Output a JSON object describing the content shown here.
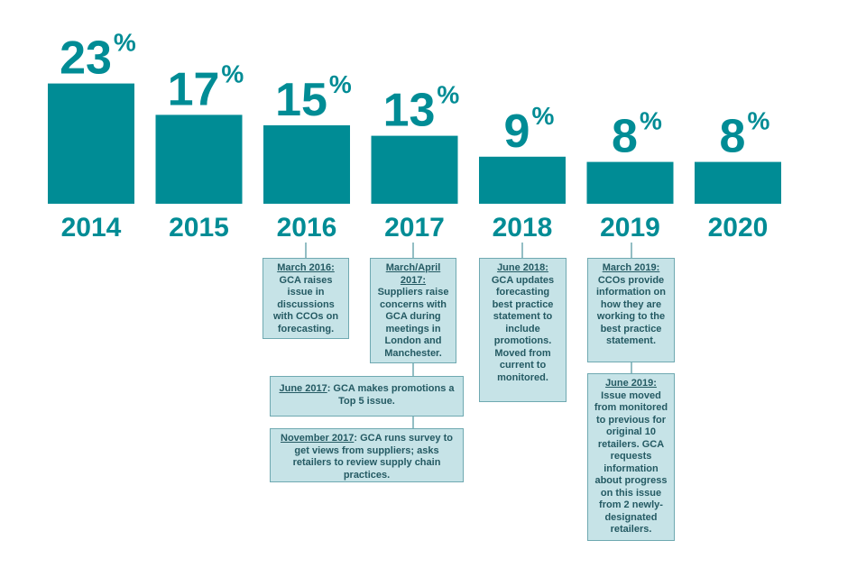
{
  "colors": {
    "bar": "#008c95",
    "text": "#008c95",
    "box_fill": "#c6e3e7",
    "box_border": "#6fa9b1",
    "box_text": "#245a63",
    "connector": "#6fa9b1"
  },
  "chart_data": {
    "type": "bar",
    "categories": [
      "2014",
      "2015",
      "2016",
      "2017",
      "2018",
      "2019",
      "2020"
    ],
    "values": [
      23,
      17,
      15,
      13,
      9,
      8,
      8
    ],
    "data_labels": [
      "23",
      "17",
      "15",
      "13",
      "9",
      "8",
      "8"
    ],
    "value_suffix": "%",
    "title": "",
    "xlabel": "",
    "ylabel": "",
    "grid": false,
    "legend": "none"
  },
  "notes": [
    {
      "id": "n2016",
      "date": "March 2016:",
      "text": "GCA raises issue in discussions with CCOs on forecasting."
    },
    {
      "id": "n2017",
      "date": "March/April 2017:",
      "text": "Suppliers raise concerns with GCA during meetings in London and Manchester."
    },
    {
      "id": "n2017b",
      "date": "June 2017",
      "text": ": GCA makes promotions a Top 5 issue."
    },
    {
      "id": "n2017c",
      "date": "November 2017",
      "text": ": GCA runs survey to get views from suppliers; asks retailers to review supply chain practices."
    },
    {
      "id": "n2018",
      "date": "June 2018:",
      "text": "GCA updates forecasting best practice statement to include promotions. Moved from current to monitored."
    },
    {
      "id": "n2019a",
      "date": "March 2019:",
      "text": "CCOs provide information on how they are working to the best practice statement."
    },
    {
      "id": "n2019b",
      "date": "June 2019:",
      "text": "Issue moved from monitored to previous for original 10 retailers. GCA requests information about progress on this issue from 2 newly-designated retailers."
    }
  ]
}
